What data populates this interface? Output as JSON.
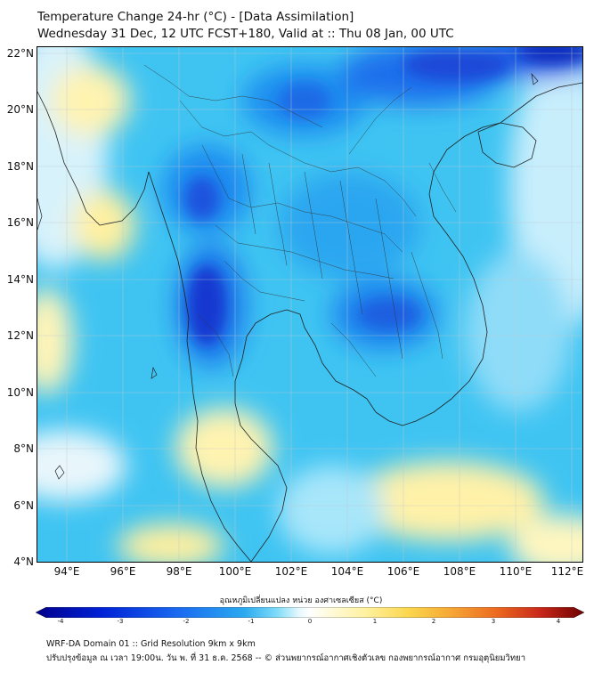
{
  "title_line1": "Temperature Change 24-hr (°C) - [Data Assimilation]",
  "title_line2": "Wednesday 31 Dec, 12 UTC FCST+180, Valid at :: Thu 08 Jan, 00 UTC",
  "lat_labels": [
    "22°N",
    "20°N",
    "18°N",
    "16°N",
    "14°N",
    "12°N",
    "10°N",
    "8°N",
    "6°N",
    "4°N"
  ],
  "lon_labels": [
    "94°E",
    "96°E",
    "98°E",
    "100°E",
    "102°E",
    "104°E",
    "106°E",
    "108°E",
    "110°E",
    "112°E"
  ],
  "colorbar": {
    "label": "อุณหภูมิเปลี่ยนแปลง หน่วย องศาเซลเซียส (°C)",
    "ticks": [
      "-4",
      "-3",
      "-2",
      "-1",
      "0",
      "1",
      "2",
      "3",
      "4"
    ],
    "colors": [
      "#00008c",
      "#0022d6",
      "#1a6af0",
      "#2aa9f0",
      "#54d2f5",
      "#b0ecfb",
      "#ffffff",
      "#ffffff",
      "#fff7b8",
      "#fbe463",
      "#f5b43c",
      "#ef7a22",
      "#d6321b",
      "#a80d0d",
      "#6e0000"
    ]
  },
  "footer_line1": "WRF-DA Domain 01 :: Grid Resolution 9km x 9km",
  "footer_line2": "ปรับปรุงข้อมูล ณ เวลา 19:00น. วัน พ. ที่ 31 ธ.ค. 2568 -- © ส่วนพยากรณ์อากาศเชิงตัวเลข กองพยากรณ์อากาศ กรมอุตุนิยมวิทยา"
}
